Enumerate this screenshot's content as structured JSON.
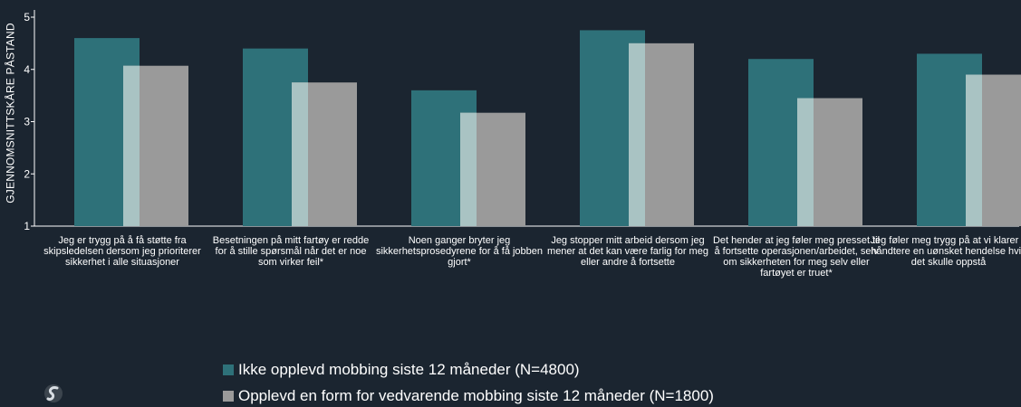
{
  "colors": {
    "background": "#1b2530",
    "series1": "#2e7179",
    "series2": "#9a9a9a",
    "overlap": "#a9c3c3",
    "axis": "#ffffff",
    "text": "#ffffff"
  },
  "chart_data": {
    "type": "bar",
    "title": "",
    "xlabel": "",
    "ylabel": "GJENNOMSNITTSKÅRE PÅSTAND",
    "ylim": [
      1,
      5
    ],
    "yticks": [
      "1",
      "2",
      "3",
      "4",
      "5"
    ],
    "grid": false,
    "legend_position": "bottom",
    "categories": [
      "Jeg er trygg på å få støtte fra skipsledelsen dersom jeg prioriterer sikkerhet i alle situasjoner",
      "Besetningen på mitt fartøy er redde for å stille spørsmål når det er noe som virker feil*",
      "Noen ganger bryter jeg sikkerhetsprosedyrene for å få jobben gjort*",
      "Jeg stopper mitt arbeid dersom jeg mener at det kan være farlig for meg eller andre å fortsette",
      "Det hender at jeg føler meg presset til å fortsette operasjonen/arbeidet, selv om sikkerheten for meg selv eller fartøyet er truet*",
      "Jeg føler meg trygg på at vi klarer å håndtere en uønsket hendelse hvis det skulle oppstå"
    ],
    "series": [
      {
        "name": "Ikke opplevd mobbing siste 12 måneder (N=4800)",
        "values": [
          4.6,
          4.4,
          3.6,
          4.75,
          4.2,
          4.3
        ]
      },
      {
        "name": "Opplevd en form for vedvarende mobbing siste 12 måneder (N=1800)",
        "values": [
          4.07,
          3.75,
          3.17,
          4.5,
          3.45,
          3.9
        ]
      }
    ]
  }
}
